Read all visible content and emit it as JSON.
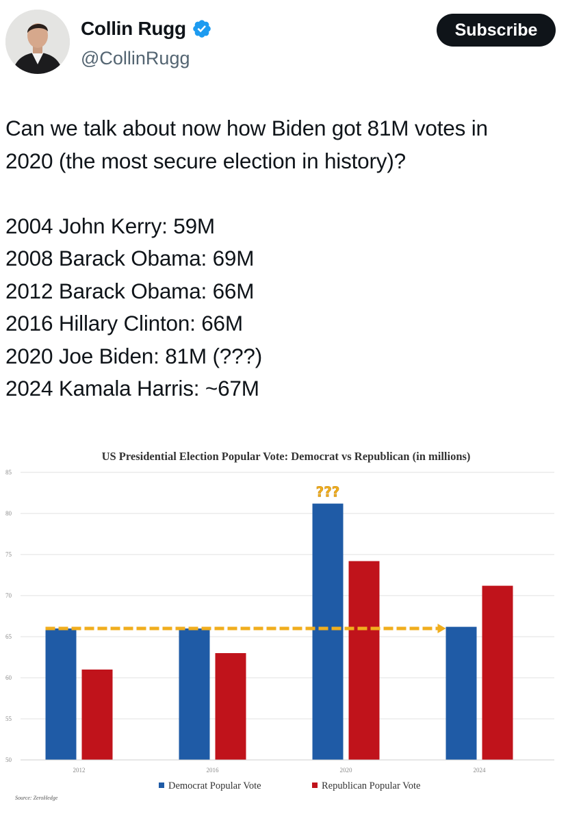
{
  "header": {
    "name": "Collin Rugg",
    "handle": "@CollinRugg",
    "subscribe_label": "Subscribe",
    "verified_icon": "verified-badge-icon",
    "verified_color": "#1d9bf0"
  },
  "tweet": {
    "intro_line1": "Can we talk about now how Biden got 81M votes in",
    "intro_line2": "2020 (the most secure election in history)?",
    "list": [
      "2004 John Kerry: 59M",
      "2008 Barack Obama: 69M",
      "2012 Barack Obama: 66M",
      "2016 Hillary Clinton: 66M",
      "2020 Joe Biden: 81M (???)",
      "2024 Kamala Harris: ~67M"
    ]
  },
  "chart_data": {
    "type": "bar",
    "title": "US Presidential Election Popular Vote: Democrat vs Republican (in millions)",
    "categories": [
      "2012",
      "2016",
      "2020",
      "2024"
    ],
    "series": [
      {
        "name": "Democrat Popular Vote",
        "values": [
          66,
          66,
          81.2,
          66.2
        ],
        "color": "#1f5ba6"
      },
      {
        "name": "Republican Popular Vote",
        "values": [
          61,
          63,
          74.2,
          71.2
        ],
        "color": "#c0131b"
      }
    ],
    "ylim": [
      50,
      85
    ],
    "yticks": [
      50,
      55,
      60,
      65,
      70,
      75,
      80,
      85
    ],
    "reference_line": {
      "value": 66,
      "color": "#f0ae1e"
    },
    "annotation": {
      "text": "???",
      "category": "2020",
      "color": "#f0ae1e"
    },
    "legend_position": "bottom",
    "source": "Source: ZeroHedge"
  }
}
